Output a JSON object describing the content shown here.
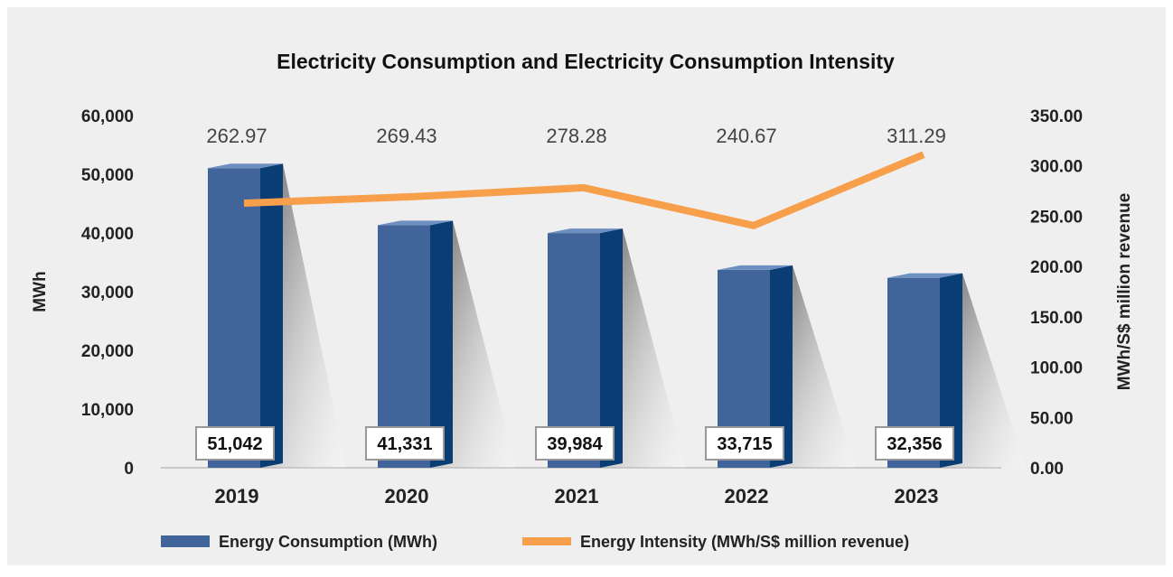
{
  "chart_data": {
    "type": "bar",
    "title": "Electricity Consumption and Electricity Consumption Intensity",
    "ylabel": "MWh",
    "y2label": "MWh/S$ million revenue",
    "categories": [
      "2019",
      "2020",
      "2021",
      "2022",
      "2023"
    ],
    "series": [
      {
        "name": "Energy Consumption (MWh)",
        "type": "bar",
        "color": "#41659a",
        "values": [
          51042,
          41331,
          39984,
          33715,
          32356
        ],
        "value_labels": [
          "51,042",
          "41,331",
          "39,984",
          "33,715",
          "32,356"
        ]
      },
      {
        "name": "Energy Intensity (MWh/S$ million revenue)",
        "type": "line",
        "axis": "y2",
        "color": "#f79f4b",
        "values": [
          262.97,
          269.43,
          278.28,
          240.67,
          311.29
        ]
      }
    ],
    "ylim": [
      0,
      60000
    ],
    "yticks": [
      0,
      {
        "value": 10000,
        "label": "10,000"
      },
      {
        "value": 20000,
        "label": "20,000"
      },
      {
        "value": 30000,
        "label": "30,000"
      },
      {
        "value": 40000,
        "label": "40,000"
      },
      {
        "value": 50000,
        "label": "50,000"
      },
      {
        "value": 60000,
        "label": "60,000"
      }
    ],
    "y2lim": [
      0,
      350
    ],
    "y2ticks": [
      {
        "value": 0,
        "label": "0.00"
      },
      {
        "value": 50,
        "label": "50.00"
      },
      {
        "value": 100,
        "label": "100.00"
      },
      {
        "value": 150,
        "label": "150.00"
      },
      {
        "value": 200,
        "label": "200.00"
      },
      {
        "value": 250,
        "label": "250.00"
      },
      {
        "value": 300,
        "label": "300.00"
      },
      {
        "value": 350,
        "label": "350.00"
      }
    ],
    "legend": "bottom"
  }
}
